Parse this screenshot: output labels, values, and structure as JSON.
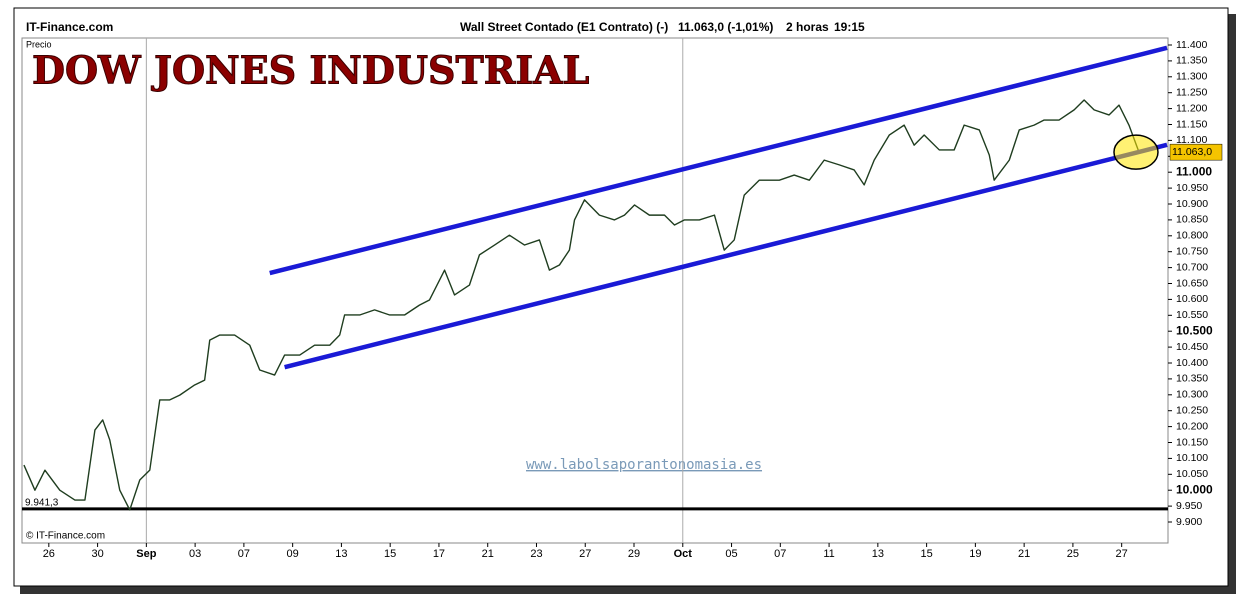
{
  "chart_data": {
    "type": "line",
    "title": "DOW JONES INDUSTRIAL",
    "source": "IT-Finance.com",
    "header": "Wall Street Contado (E1 Contrato) (-)",
    "quote": "11.063,0 (-1,01%)",
    "interval": "2 horas",
    "time": "19:15",
    "y_label": "Precio",
    "watermark": "www.labolsaporantonomasia.es",
    "copyright": "© IT-Finance.com",
    "xlim": [
      -1.1,
      45.9
    ],
    "ylim": [
      9.834,
      11.422
    ],
    "xticks": [
      {
        "value": 0,
        "label": "26"
      },
      {
        "value": 2,
        "label": "30"
      },
      {
        "value": 4,
        "label": "Sep"
      },
      {
        "value": 6,
        "label": "03"
      },
      {
        "value": 8,
        "label": "07"
      },
      {
        "value": 10,
        "label": "09"
      },
      {
        "value": 12,
        "label": "13"
      },
      {
        "value": 14,
        "label": "15"
      },
      {
        "value": 16,
        "label": "17"
      },
      {
        "value": 18,
        "label": "21"
      },
      {
        "value": 20,
        "label": "23"
      },
      {
        "value": 22,
        "label": "27"
      },
      {
        "value": 24,
        "label": "29"
      },
      {
        "value": 26,
        "label": "Oct"
      },
      {
        "value": 28,
        "label": "05"
      },
      {
        "value": 30,
        "label": "07"
      },
      {
        "value": 32,
        "label": "11"
      },
      {
        "value": 34,
        "label": "13"
      },
      {
        "value": 36,
        "label": "15"
      },
      {
        "value": 38,
        "label": "19"
      },
      {
        "value": 40,
        "label": "21"
      },
      {
        "value": 42,
        "label": "25"
      },
      {
        "value": 44,
        "label": "27"
      }
    ],
    "yticks": [
      {
        "value": 11.4,
        "label": "11.400"
      },
      {
        "value": 11.35,
        "label": "11.350"
      },
      {
        "value": 11.3,
        "label": "11.300"
      },
      {
        "value": 11.25,
        "label": "11.250"
      },
      {
        "value": 11.2,
        "label": "11.200"
      },
      {
        "value": 11.15,
        "label": "11.150"
      },
      {
        "value": 11.1,
        "label": "11.100"
      },
      {
        "value": 11.05,
        "label": "11.050"
      },
      {
        "value": 11.0,
        "label": "11.000"
      },
      {
        "value": 10.95,
        "label": "10.950"
      },
      {
        "value": 10.9,
        "label": "10.900"
      },
      {
        "value": 10.85,
        "label": "10.850"
      },
      {
        "value": 10.8,
        "label": "10.800"
      },
      {
        "value": 10.75,
        "label": "10.750"
      },
      {
        "value": 10.7,
        "label": "10.700"
      },
      {
        "value": 10.65,
        "label": "10.650"
      },
      {
        "value": 10.6,
        "label": "10.600"
      },
      {
        "value": 10.55,
        "label": "10.550"
      },
      {
        "value": 10.5,
        "label": "10.500"
      },
      {
        "value": 10.45,
        "label": "10.450"
      },
      {
        "value": 10.4,
        "label": "10.400"
      },
      {
        "value": 10.35,
        "label": "10.350"
      },
      {
        "value": 10.3,
        "label": "10.300"
      },
      {
        "value": 10.25,
        "label": "10.250"
      },
      {
        "value": 10.2,
        "label": "10.200"
      },
      {
        "value": 10.15,
        "label": "10.150"
      },
      {
        "value": 10.1,
        "label": "10.100"
      },
      {
        "value": 10.05,
        "label": "10.050"
      },
      {
        "value": 10.0,
        "label": "10.000"
      },
      {
        "value": 9.95,
        "label": "9.950"
      },
      {
        "value": 9.9,
        "label": "9.900"
      }
    ],
    "series": [
      {
        "color": "#1f3d1f",
        "x": [
          -1.02,
          -0.57,
          -0.16,
          0.45,
          1.07,
          1.48,
          1.89,
          2.21,
          2.5,
          2.91,
          3.32,
          3.73,
          4.14,
          4.55,
          4.96,
          5.37,
          5.98,
          6.39,
          6.6,
          7.01,
          7.62,
          8.24,
          8.65,
          9.26,
          9.67,
          10.29,
          10.9,
          11.52,
          11.93,
          12.13,
          12.75,
          13.36,
          13.98,
          14.59,
          15.2,
          15.61,
          16.23,
          16.64,
          17.25,
          17.66,
          18.28,
          18.89,
          19.51,
          20.12,
          20.53,
          20.94,
          21.35,
          21.56,
          21.97,
          22.58,
          23.2,
          23.61,
          24.02,
          24.63,
          25.25,
          25.66,
          26.07,
          26.68,
          27.3,
          27.7,
          28.11,
          28.52,
          29.14,
          29.96,
          30.57,
          31.19,
          31.8,
          32.42,
          33.03,
          33.44,
          33.85,
          34.47,
          35.08,
          35.49,
          35.9,
          36.52,
          37.13,
          37.54,
          38.16,
          38.57,
          38.77,
          39.39,
          39.8,
          40.41,
          40.82,
          41.43,
          42.05,
          42.46,
          42.87,
          43.48,
          43.89,
          44.3,
          44.71
        ],
        "values": [
          10.079,
          10.0,
          10.063,
          10.0,
          9.969,
          9.969,
          10.189,
          10.221,
          10.158,
          10.0,
          9.938,
          10.032,
          10.063,
          10.284,
          10.284,
          10.299,
          10.331,
          10.346,
          10.472,
          10.488,
          10.488,
          10.456,
          10.378,
          10.362,
          10.425,
          10.425,
          10.456,
          10.456,
          10.488,
          10.551,
          10.551,
          10.567,
          10.551,
          10.551,
          10.582,
          10.598,
          10.692,
          10.614,
          10.645,
          10.74,
          10.771,
          10.802,
          10.771,
          10.787,
          10.692,
          10.708,
          10.755,
          10.85,
          10.913,
          10.865,
          10.85,
          10.865,
          10.897,
          10.865,
          10.865,
          10.834,
          10.85,
          10.85,
          10.865,
          10.755,
          10.787,
          10.928,
          10.975,
          10.975,
          10.991,
          10.975,
          11.038,
          11.023,
          11.007,
          10.96,
          11.038,
          11.117,
          11.148,
          11.085,
          11.117,
          11.07,
          11.07,
          11.148,
          11.133,
          11.054,
          10.975,
          11.038,
          11.133,
          11.148,
          11.164,
          11.164,
          11.196,
          11.227,
          11.196,
          11.18,
          11.211,
          11.148,
          11.063
        ]
      }
    ],
    "trendlines": [
      {
        "color": "#1a1ad6",
        "x": [
          9.06,
          45.86
        ],
        "values": [
          10.683,
          11.391
        ]
      },
      {
        "color": "#1a1ad6",
        "x": [
          9.67,
          45.86
        ],
        "values": [
          10.387,
          11.086
        ]
      }
    ],
    "support": {
      "value": 9.9413,
      "label": "9.941,3",
      "color": "#000000"
    },
    "last_price": {
      "value": 11.063,
      "label": "11.063,0",
      "color": "#f5c400"
    }
  }
}
